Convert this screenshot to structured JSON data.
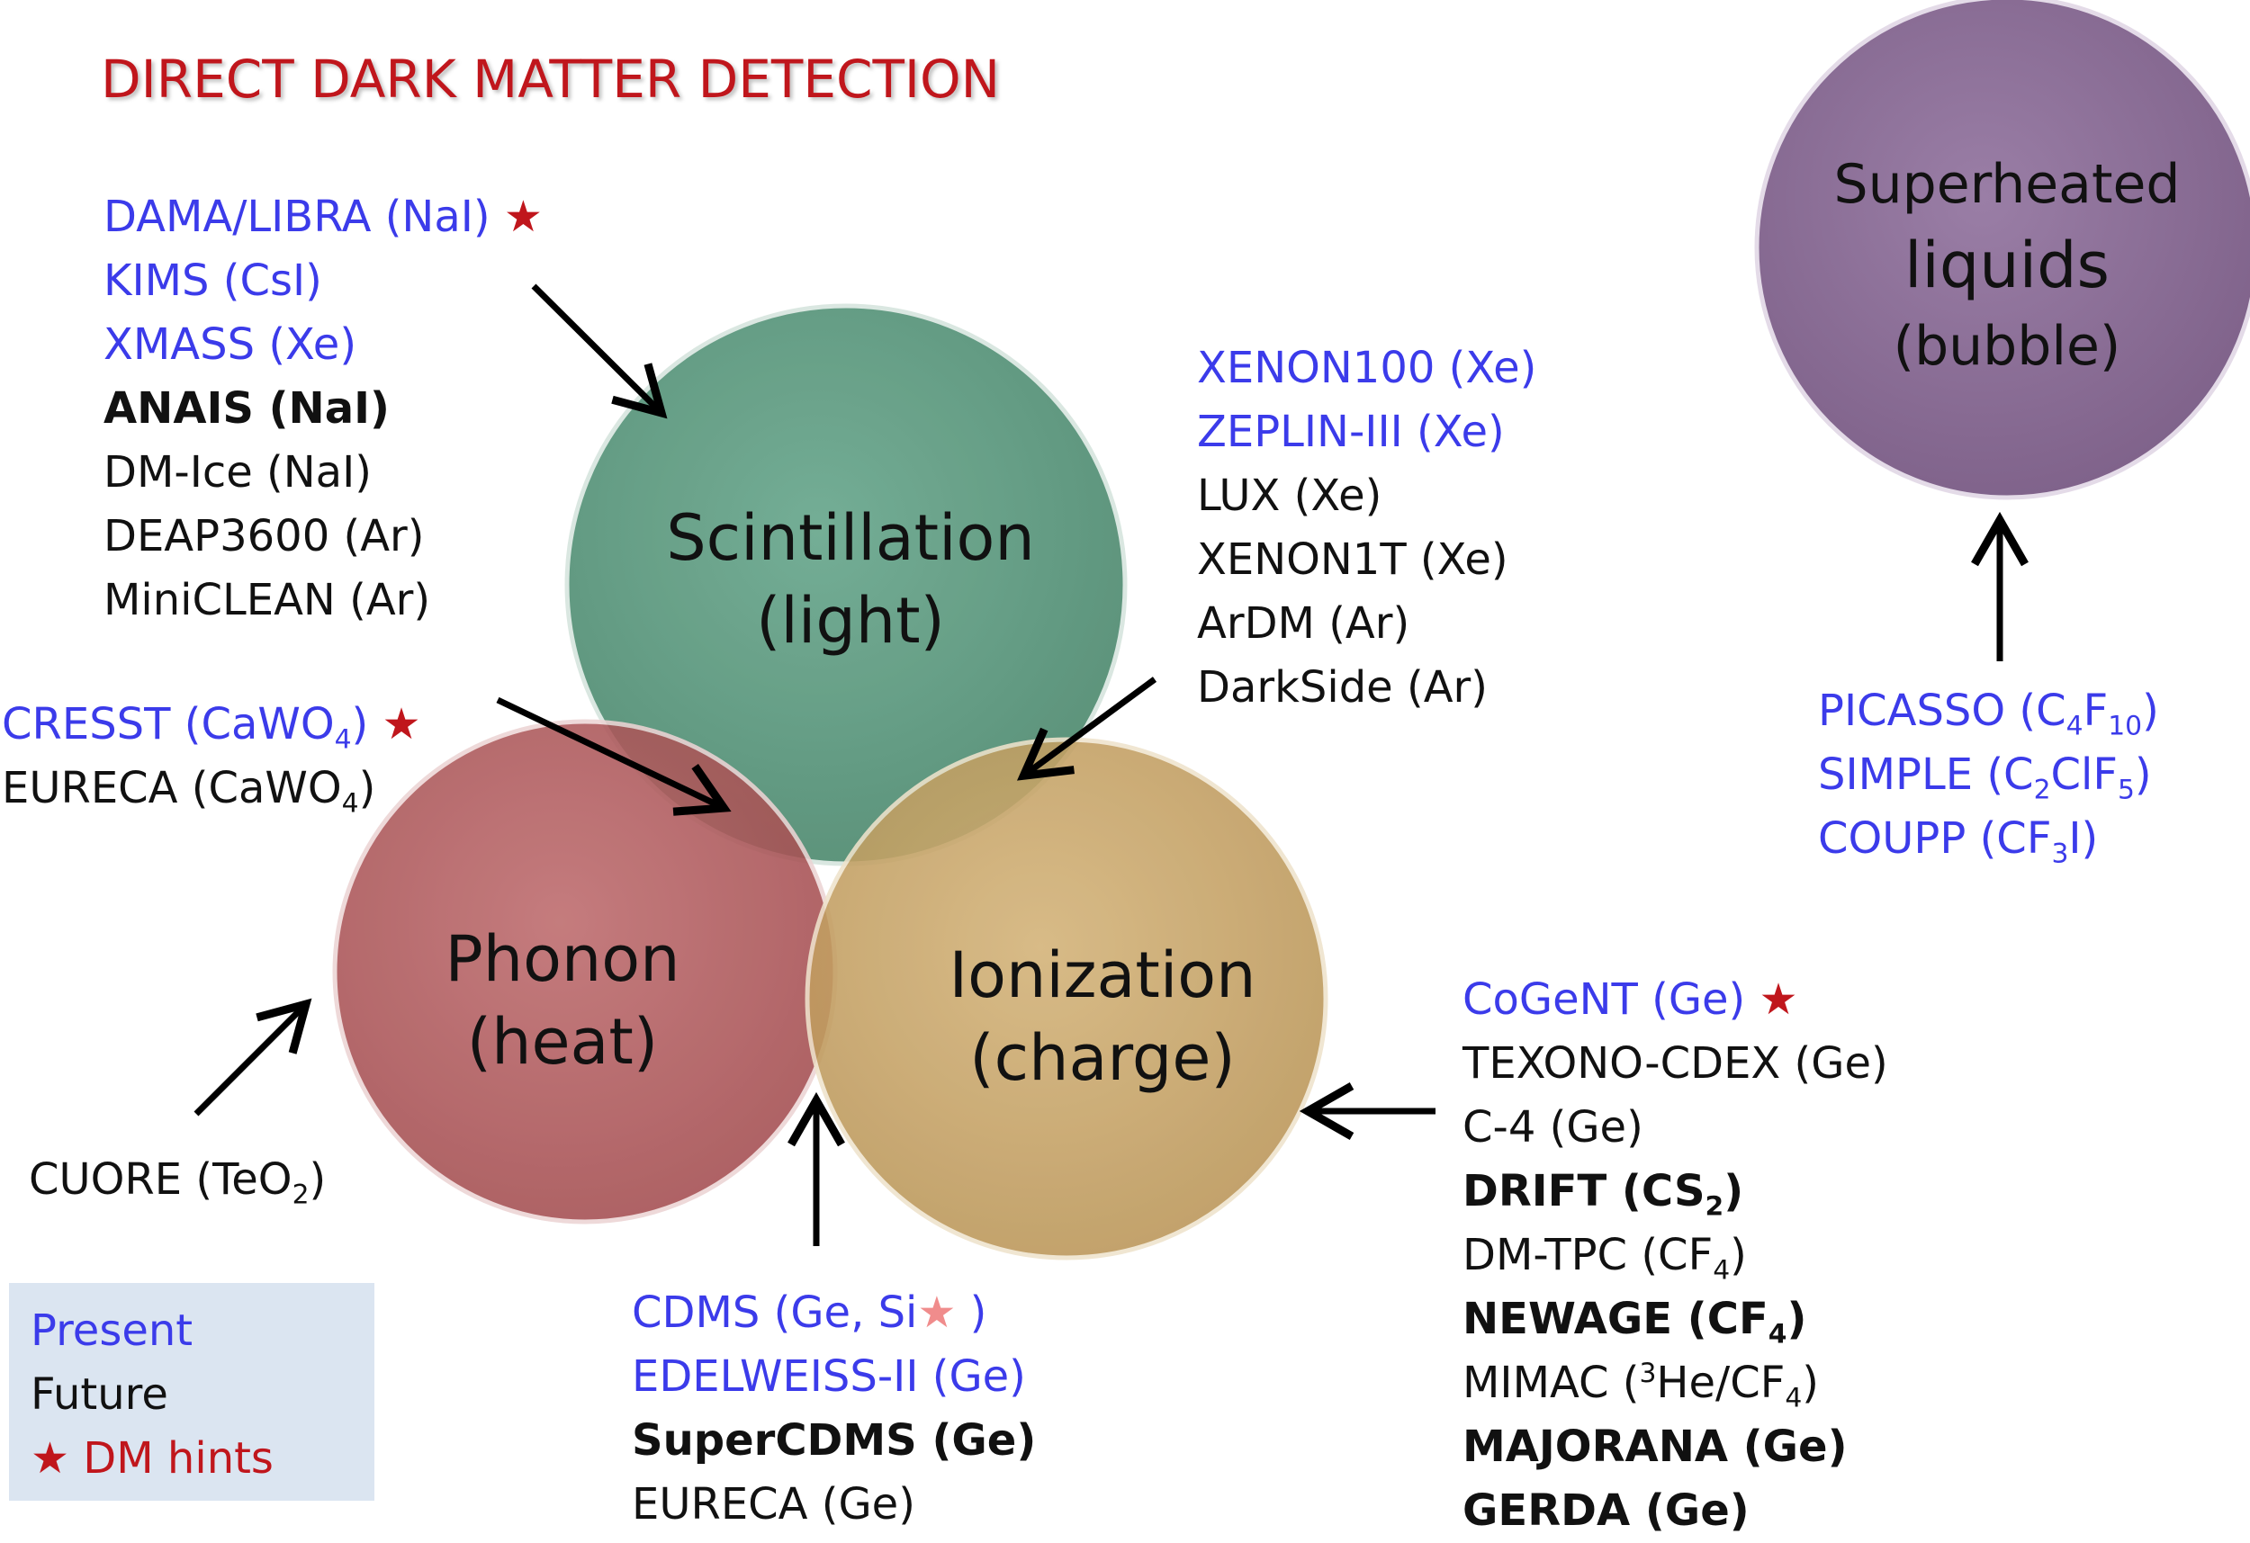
{
  "title": "DIRECT DARK MATTER DETECTION",
  "colors": {
    "present": "#3b3bea",
    "future": "#111111",
    "hint_star": "#c0161c",
    "title": "#c0161c",
    "scintillation": "#5d9a80",
    "phonon": "#b05a5c",
    "ionization": "#c8a566",
    "superheated": "#8c6e98",
    "legend_bg": "#dbe5f1"
  },
  "circles": {
    "scintillation": {
      "line1": "Scintillation",
      "line2": "(light)"
    },
    "phonon": {
      "line1": "Phonon",
      "line2": "(heat)"
    },
    "ionization": {
      "line1": "Ionization",
      "line2": "(charge)"
    },
    "superheated": {
      "line1": "Superheated",
      "line2": "liquids",
      "line3": "(bubble)"
    }
  },
  "scintillation_only": {
    "dama": "DAMA/LIBRA (NaI)",
    "kims": "KIMS (CsI)",
    "xmass": "XMASS (Xe)",
    "anais": "ANAIS (NaI)",
    "dmice": "DM-Ice (NaI)",
    "deap": "DEAP3600 (Ar)",
    "miniclean": "MiniCLEAN (Ar)"
  },
  "scint_ion": {
    "xenon100": "XENON100 (Xe)",
    "zeplin": "ZEPLIN-III (Xe)",
    "lux": "LUX (Xe)",
    "xenon1t": "XENON1T (Xe)",
    "ardm": "ArDM (Ar)",
    "darkside": "DarkSide (Ar)"
  },
  "scint_phonon": {
    "cresst": {
      "name": "CRESST (CaWO",
      "sub": "4",
      "close": ")"
    },
    "eureca": {
      "name": "EURECA (CaWO",
      "sub": "4",
      "close": ")"
    }
  },
  "phonon_only": {
    "cuore": {
      "name": "CUORE (TeO",
      "sub": "2",
      "close": ")"
    }
  },
  "phonon_ion": {
    "cdms": {
      "name": "CDMS (Ge, Si",
      "close": " )"
    },
    "edelweiss": "EDELWEISS-II (Ge)",
    "supercdms": "SuperCDMS (Ge)",
    "eureca": "EURECA (Ge)"
  },
  "ionization_only": {
    "cogent": "CoGeNT (Ge)",
    "texono": "TEXONO-CDEX (Ge)",
    "c4": "C-4 (Ge)",
    "drift": {
      "name": "DRIFT (CS",
      "sub": "2",
      "close": ")"
    },
    "dmtpc": {
      "name": "DM-TPC (CF",
      "sub": "4",
      "close": ")"
    },
    "newage": {
      "name": "NEWAGE (CF",
      "sub": "4",
      "close": ")"
    },
    "mimac": {
      "name": "MIMAC (",
      "sup": "3",
      "mid": "He/CF",
      "sub": "4",
      "close": ")"
    },
    "majorana": "MAJORANA  (Ge)",
    "gerda": "GERDA  (Ge)"
  },
  "bubble": {
    "picasso": {
      "name": "PICASSO (C",
      "sub1": "4",
      "mid": "F",
      "sub2": "10",
      "close": ")"
    },
    "simple": {
      "name": "SIMPLE (C",
      "sub1": "2",
      "mid": "ClF",
      "sub2": "5",
      "close": ")"
    },
    "coupp": {
      "name": "COUPP (CF",
      "sub1": "3",
      "mid": "I",
      "close": ")"
    }
  },
  "legend": {
    "present": "Present",
    "future": "Future",
    "hints": "DM hints",
    "star": "★"
  },
  "star": "★"
}
